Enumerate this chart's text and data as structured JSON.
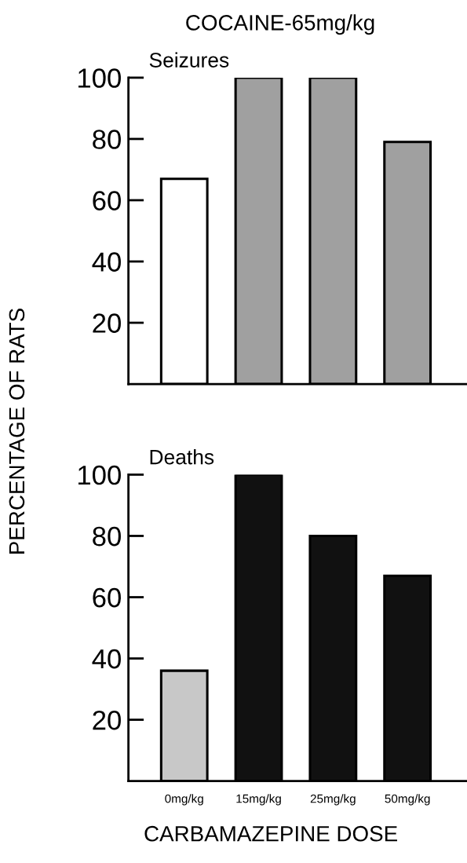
{
  "chart_data": [
    {
      "type": "bar",
      "title": "COCAINE-65mg/kg",
      "subtitle": "Seizures",
      "ylabel": "PERCENTAGE OF RATS",
      "categories": [
        null,
        null,
        null,
        null
      ],
      "values": [
        67,
        100,
        100,
        79
      ],
      "colors": [
        "#ffffff",
        "#a0a0a0",
        "#a0a0a0",
        "#a0a0a0"
      ],
      "ylim": [
        0,
        100
      ],
      "yticks": [
        20,
        40,
        60,
        80,
        100
      ],
      "tick_labels": "y",
      "grid": false
    },
    {
      "type": "bar",
      "subtitle": "Deaths",
      "xlabel": "CARBAMAZEPINE DOSE",
      "categories": [
        "0mg/kg",
        "15mg/kg",
        "25mg/kg",
        "50mg/kg"
      ],
      "values": [
        36,
        100,
        80,
        67
      ],
      "colors": [
        "#c8c8c8",
        "#111111",
        "#111111",
        "#111111"
      ],
      "ylim": [
        0,
        100
      ],
      "yticks": [
        20,
        40,
        60,
        80,
        100
      ],
      "grid": false
    }
  ]
}
